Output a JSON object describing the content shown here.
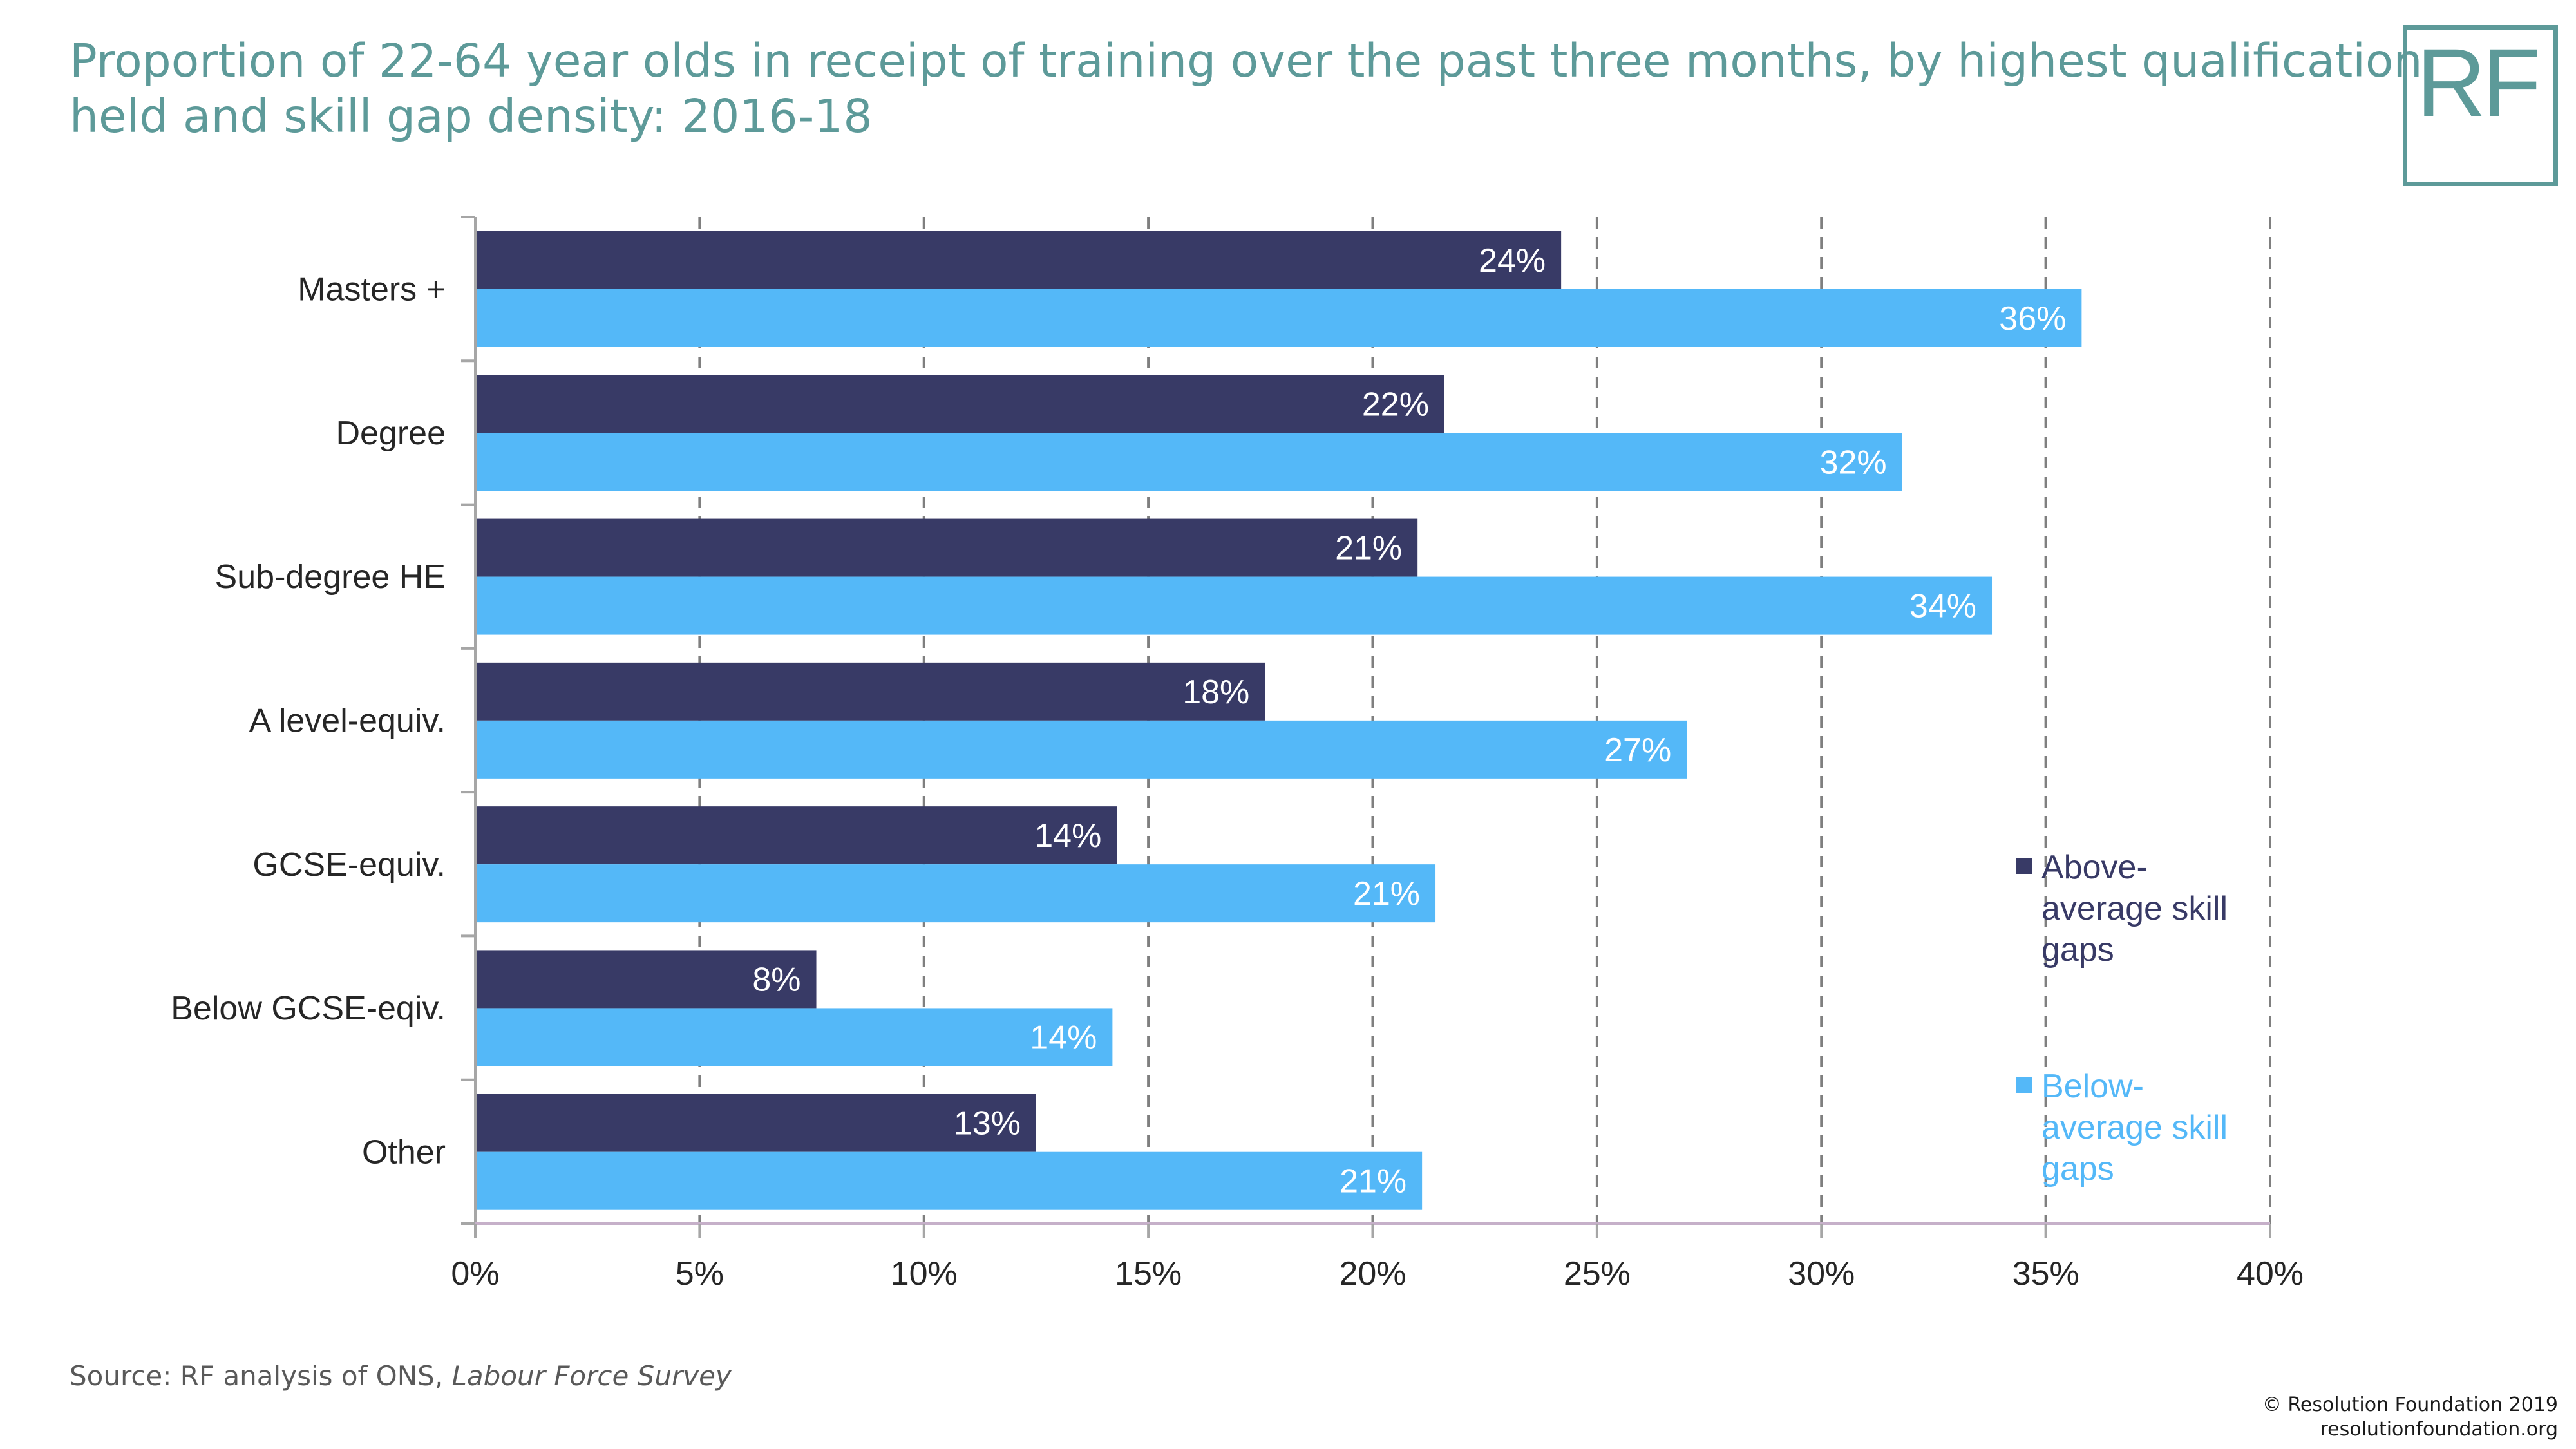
{
  "title_lines": [
    "Proportion of 22-64 year olds in receipt of training over the past three months, by highest qualification",
    "held and skill gap density: 2016-18"
  ],
  "logo": "RF",
  "source": {
    "prefix": "Source: RF analysis of ONS, ",
    "italic": "Labour Force Survey"
  },
  "copyright": [
    "© Resolution Foundation 2019",
    "resolutionfoundation.org"
  ],
  "colors": {
    "title": "#5d9a99",
    "above": "#383a66",
    "below": "#54b8f8",
    "grid": "#7f7f7f"
  },
  "chart_data": {
    "type": "bar",
    "orientation": "horizontal",
    "categories": [
      "Masters +",
      "Degree",
      "Sub-degree HE",
      "A level-equiv.",
      "GCSE-equiv.",
      "Below GCSE-eqiv.",
      "Other"
    ],
    "series": [
      {
        "name": "Above-average skill gaps",
        "legend_lines": [
          "Above-",
          "average skill",
          "gaps"
        ],
        "color": "#383a66",
        "values": [
          24.2,
          21.6,
          21.0,
          17.6,
          14.3,
          7.6,
          12.5
        ],
        "labels": [
          "24%",
          "22%",
          "21%",
          "18%",
          "14%",
          "8%",
          "13%"
        ]
      },
      {
        "name": "Below-average skill gaps",
        "legend_lines": [
          "Below-",
          "average skill",
          "gaps"
        ],
        "color": "#54b8f8",
        "values": [
          35.8,
          31.8,
          33.8,
          27.0,
          21.4,
          14.2,
          21.1
        ],
        "labels": [
          "36%",
          "32%",
          "34%",
          "27%",
          "21%",
          "14%",
          "21%"
        ]
      }
    ],
    "xlim": [
      0,
      40
    ],
    "xticks": [
      0,
      5,
      10,
      15,
      20,
      25,
      30,
      35,
      40
    ],
    "xtick_labels": [
      "0%",
      "5%",
      "10%",
      "15%",
      "20%",
      "25%",
      "30%",
      "35%",
      "40%"
    ],
    "grid": "vertical dashed",
    "legend_position": "right"
  }
}
